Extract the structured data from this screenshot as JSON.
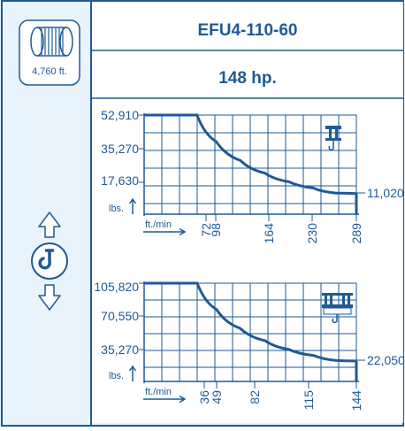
{
  "header": {
    "title": "EFU4-110-60",
    "power": "148 hp.",
    "rope_length": "4,760 ft."
  },
  "icons": {
    "drum": "rope-drum-icon",
    "hook": "hook-up-down-icon",
    "single_hook": "single-hook-trolley-icon",
    "double_hook": "double-hook-trolley-icon"
  },
  "colors": {
    "accent": "#1f5a96",
    "background": "#e8f3fb",
    "panel": "#ffffff"
  },
  "chart_data": [
    {
      "type": "line",
      "xlabel": "ft./min",
      "ylabel": "lbs.",
      "x_ticks": [
        "72",
        "98",
        "164",
        "230",
        "289"
      ],
      "y_ticks": [
        "52,910",
        "35,270",
        "17,630"
      ],
      "end_label": "11,020",
      "xlim": [
        0,
        289
      ],
      "ylim": [
        0,
        52910
      ],
      "series": [
        {
          "x": [
            0,
            72,
            98,
            131,
            164,
            197,
            230,
            260,
            289
          ],
          "y": [
            52910,
            52910,
            38800,
            28700,
            22000,
            17300,
            14000,
            11300,
            11020
          ]
        }
      ]
    },
    {
      "type": "line",
      "xlabel": "ft./min",
      "ylabel": "lbs.",
      "x_ticks": [
        "36",
        "49",
        "82",
        "115",
        "144"
      ],
      "y_ticks": [
        "105,820",
        "70,550",
        "35,270"
      ],
      "end_label": "22,050",
      "xlim": [
        0,
        144
      ],
      "ylim": [
        0,
        105820
      ],
      "series": [
        {
          "x": [
            0,
            36,
            49,
            65,
            82,
            98,
            115,
            130,
            144
          ],
          "y": [
            105820,
            105820,
            77700,
            57400,
            44000,
            34600,
            28000,
            22600,
            22050
          ]
        }
      ]
    }
  ]
}
